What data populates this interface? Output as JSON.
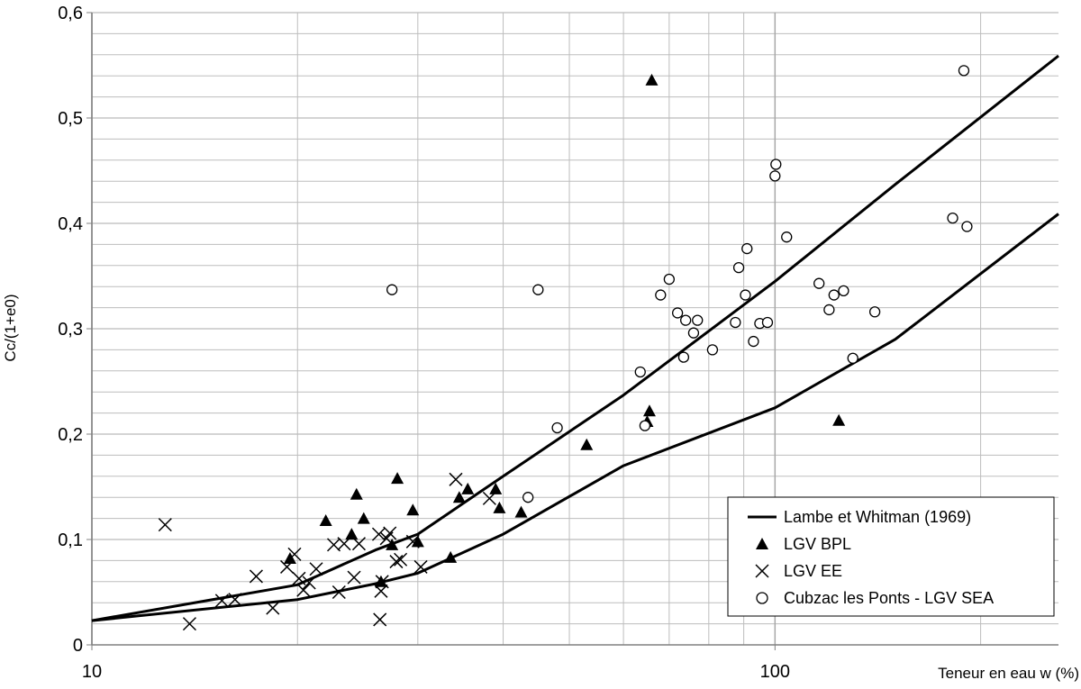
{
  "chart_data": {
    "type": "scatter",
    "title": "",
    "xlabel": "Teneur en eau w (%)",
    "ylabel": "Cc/(1+e0)",
    "xscale": "log",
    "xlim": [
      10,
      260
    ],
    "ylim": [
      0,
      0.6
    ],
    "x_ticks": [
      10,
      100
    ],
    "x_tick_labels": [
      "10",
      "100"
    ],
    "y_ticks": [
      0,
      0.1,
      0.2,
      0.3,
      0.4,
      0.5,
      0.6
    ],
    "y_tick_labels": [
      "0",
      "0,1",
      "0,2",
      "0,3",
      "0,4",
      "0,5",
      "0,6"
    ],
    "grid": true,
    "legend_position": "bottom-right",
    "colors": {
      "series": "#000000",
      "grid": "#bdbdbd",
      "axis": "#808080"
    },
    "series": [
      {
        "name": "Lambe et Whitman (1969)",
        "kind": "lines",
        "lines": [
          [
            [
              10,
              0.023
            ],
            [
              20,
              0.057
            ],
            [
              26,
              0.09
            ],
            [
              30,
              0.105
            ],
            [
              40,
              0.16
            ],
            [
              60,
              0.237
            ],
            [
              100,
              0.345
            ],
            [
              150,
              0.437
            ],
            [
              260,
              0.559
            ]
          ],
          [
            [
              10,
              0.023
            ],
            [
              20,
              0.043
            ],
            [
              26,
              0.058
            ],
            [
              30,
              0.068
            ],
            [
              40,
              0.105
            ],
            [
              60,
              0.17
            ],
            [
              100,
              0.225
            ],
            [
              150,
              0.29
            ],
            [
              260,
              0.409
            ]
          ]
        ]
      },
      {
        "name": "LGV BPL",
        "marker": "triangle",
        "x": [
          66,
          19.5,
          22,
          24,
          24.4,
          25,
          26.5,
          27.5,
          28,
          29.5,
          30,
          33.5,
          34.5,
          35.5,
          39,
          39.5,
          42.5,
          53,
          65,
          65.5,
          124
        ],
        "y": [
          0.536,
          0.082,
          0.118,
          0.105,
          0.143,
          0.12,
          0.06,
          0.095,
          0.158,
          0.128,
          0.098,
          0.083,
          0.14,
          0.148,
          0.148,
          0.13,
          0.126,
          0.19,
          0.212,
          0.222,
          0.213
        ]
      },
      {
        "name": "LGV EE",
        "marker": "cross",
        "x": [
          12.8,
          13.9,
          15.5,
          16.2,
          17.4,
          18.4,
          19.3,
          19.8,
          20.1,
          20.4,
          20.8,
          21.3,
          22.6,
          23,
          23.4,
          24.2,
          24.6,
          26.3,
          26.4,
          26.5,
          26.6,
          27,
          27.3,
          27.9,
          28.3,
          29.5,
          30.3,
          34.1,
          38.2
        ],
        "y": [
          0.114,
          0.02,
          0.042,
          0.043,
          0.065,
          0.035,
          0.074,
          0.086,
          0.063,
          0.052,
          0.059,
          0.072,
          0.095,
          0.05,
          0.096,
          0.064,
          0.096,
          0.105,
          0.024,
          0.051,
          0.06,
          0.101,
          0.106,
          0.079,
          0.081,
          0.098,
          0.074,
          0.157,
          0.139
        ]
      },
      {
        "name": "Cubzac les Ponts - LGV SEA",
        "marker": "circle",
        "x": [
          27.5,
          43.5,
          45,
          48,
          63.5,
          64.5,
          68,
          70,
          72,
          73.5,
          74,
          76,
          77,
          81,
          87.5,
          88.5,
          90.5,
          91,
          93,
          95,
          97.5,
          100,
          100.3,
          104,
          116,
          120,
          122,
          126,
          130,
          140,
          182,
          189,
          191
        ],
        "y": [
          0.337,
          0.14,
          0.337,
          0.206,
          0.259,
          0.208,
          0.332,
          0.347,
          0.315,
          0.273,
          0.308,
          0.296,
          0.308,
          0.28,
          0.306,
          0.358,
          0.332,
          0.376,
          0.288,
          0.305,
          0.306,
          0.445,
          0.456,
          0.387,
          0.343,
          0.318,
          0.332,
          0.336,
          0.272,
          0.316,
          0.405,
          0.545,
          0.397
        ]
      }
    ]
  }
}
